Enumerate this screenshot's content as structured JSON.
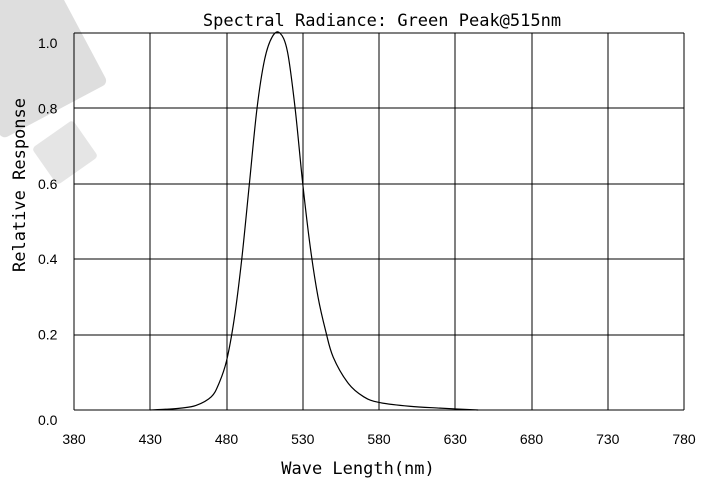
{
  "chart_data": {
    "type": "line",
    "title": "Spectral Radiance: Green Peak@515nm",
    "xlabel": "Wave Length(nm)",
    "ylabel": "Relative Response",
    "xlim": [
      380,
      780
    ],
    "ylim": [
      0,
      1.0
    ],
    "x_ticks": [
      "380",
      "430",
      "480",
      "530",
      "580",
      "630",
      "680",
      "730",
      "780"
    ],
    "y_ticks": [
      "0.0",
      "0.2",
      "0.4",
      "0.6",
      "0.8",
      "1.0"
    ],
    "grid": true,
    "series": [
      {
        "x": [
          430,
          440,
          450,
          460,
          470,
          475,
          480,
          485,
          490,
          495,
          500,
          505,
          510,
          515,
          520,
          525,
          530,
          535,
          540,
          545,
          550,
          560,
          570,
          580,
          600,
          620,
          645
        ],
        "y": [
          0.0,
          0.002,
          0.005,
          0.012,
          0.035,
          0.07,
          0.13,
          0.24,
          0.4,
          0.6,
          0.8,
          0.93,
          0.99,
          1.0,
          0.95,
          0.8,
          0.6,
          0.43,
          0.3,
          0.21,
          0.14,
          0.07,
          0.035,
          0.02,
          0.01,
          0.005,
          0.0
        ]
      }
    ]
  }
}
